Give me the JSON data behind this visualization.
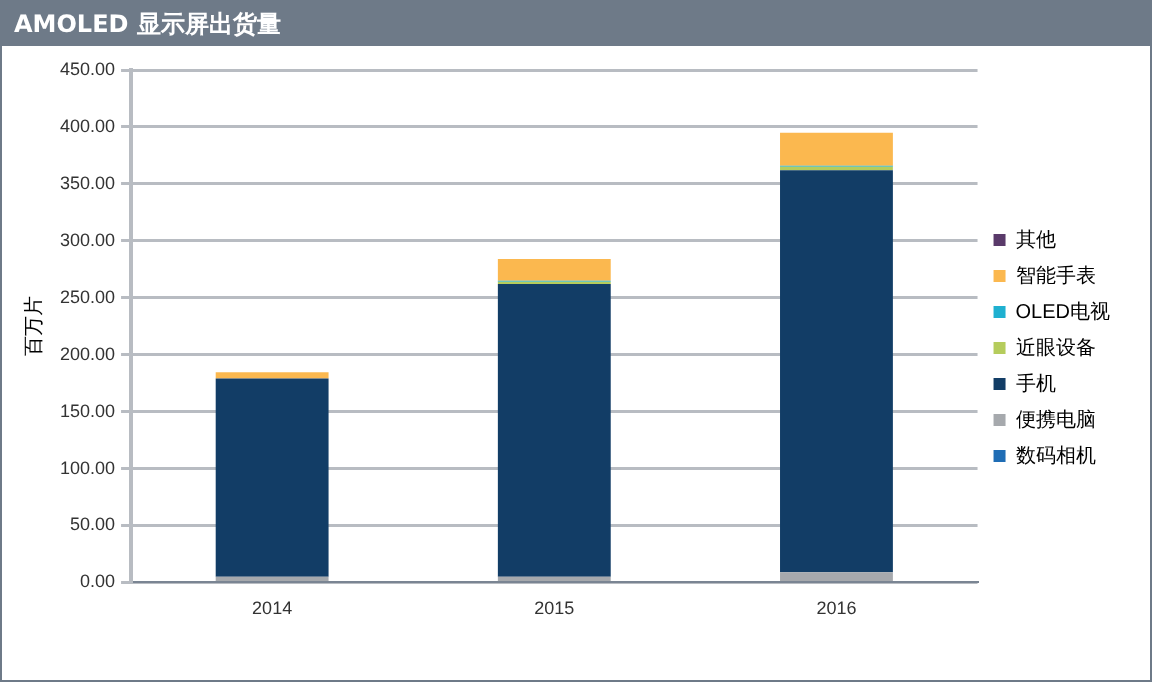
{
  "chart_data": {
    "type": "bar",
    "title": "AMOLED 显示屏出货量",
    "ylabel": "百万片",
    "categories": [
      "2014",
      "2015",
      "2016"
    ],
    "stacked": true,
    "ylim": [
      0,
      450
    ],
    "yticks": [
      {
        "value": 0,
        "label": "0.00"
      },
      {
        "value": 50,
        "label": "50.00"
      },
      {
        "value": 100,
        "label": "100.00"
      },
      {
        "value": 150,
        "label": "150.00"
      },
      {
        "value": 200,
        "label": "200.00"
      },
      {
        "value": 250,
        "label": "250.00"
      },
      {
        "value": 300,
        "label": "300.00"
      },
      {
        "value": 350,
        "label": "350.00"
      },
      {
        "value": 400,
        "label": "400.00"
      },
      {
        "value": 450,
        "label": "450.00"
      }
    ],
    "grid": "y",
    "legend": "right",
    "series": [
      {
        "name": "数码相机",
        "color": "#1f6db5",
        "values": [
          0,
          0,
          0
        ]
      },
      {
        "name": "便携电脑",
        "color": "#a6a9ad",
        "values": [
          5,
          5,
          9
        ]
      },
      {
        "name": "手机",
        "color": "#123d66",
        "values": [
          174,
          257,
          353
        ]
      },
      {
        "name": "近眼设备",
        "color": "#b5cc5c",
        "values": [
          0,
          2,
          3
        ]
      },
      {
        "name": "OLED电视",
        "color": "#1fb0d0",
        "values": [
          0,
          1,
          1
        ]
      },
      {
        "name": "智能手表",
        "color": "#fbb84f",
        "values": [
          5.5,
          19,
          29
        ]
      },
      {
        "name": "其他",
        "color": "#5a3a6a",
        "values": [
          0,
          0,
          0
        ]
      }
    ]
  }
}
